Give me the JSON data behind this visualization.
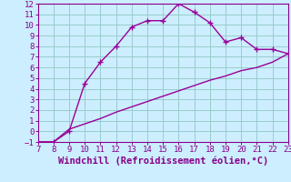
{
  "xlabel": "Windchill (Refroidissement éolien,°C)",
  "line1_x": [
    7,
    8,
    9,
    10,
    11,
    12,
    13,
    14,
    15,
    16,
    17,
    18,
    19,
    20,
    21,
    22,
    23
  ],
  "line1_y": [
    -1,
    -1,
    0,
    4.5,
    6.5,
    8,
    9.8,
    10.4,
    10.4,
    12,
    11.2,
    10.2,
    8.4,
    8.8,
    7.7,
    7.7,
    7.3
  ],
  "line2_x": [
    7,
    8,
    9,
    10,
    11,
    12,
    13,
    14,
    15,
    16,
    17,
    18,
    19,
    20,
    21,
    22,
    23
  ],
  "line2_y": [
    -1,
    -1.0,
    0.2,
    0.7,
    1.2,
    1.8,
    2.3,
    2.8,
    3.3,
    3.8,
    4.3,
    4.8,
    5.2,
    5.7,
    6.0,
    6.5,
    7.3
  ],
  "line_color": "#990099",
  "bg_color": "#cceeff",
  "grid_color": "#99cccc",
  "xlim": [
    7,
    23
  ],
  "ylim": [
    -1,
    12
  ],
  "xticks": [
    7,
    8,
    9,
    10,
    11,
    12,
    13,
    14,
    15,
    16,
    17,
    18,
    19,
    20,
    21,
    22,
    23
  ],
  "yticks": [
    -1,
    0,
    1,
    2,
    3,
    4,
    5,
    6,
    7,
    8,
    9,
    10,
    11,
    12
  ],
  "marker": "+",
  "markersize": 5,
  "linewidth": 1.0,
  "tick_fontsize": 6.5,
  "xlabel_fontsize": 7.5,
  "xlabel_color": "#880088",
  "tick_color": "#880088",
  "spine_color": "#880088"
}
